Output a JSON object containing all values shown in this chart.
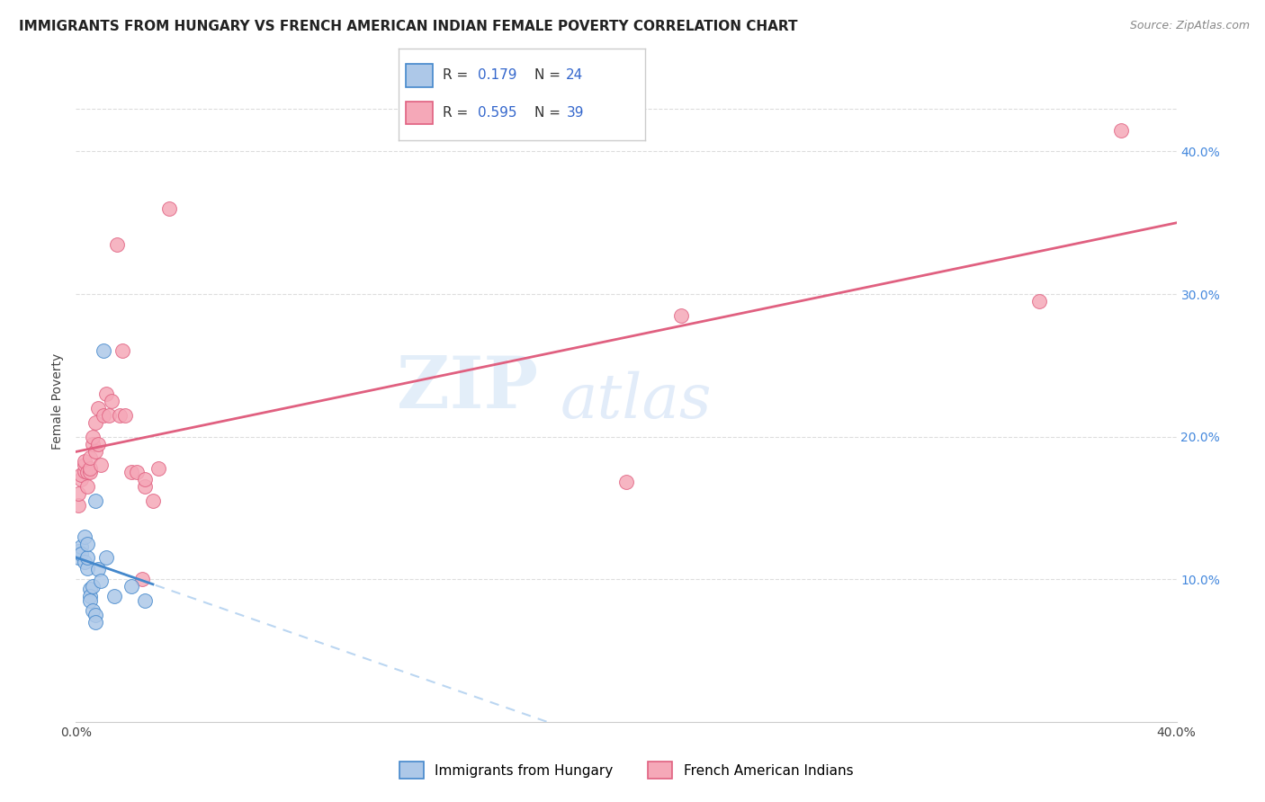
{
  "title": "IMMIGRANTS FROM HUNGARY VS FRENCH AMERICAN INDIAN FEMALE POVERTY CORRELATION CHART",
  "source": "Source: ZipAtlas.com",
  "ylabel": "Female Poverty",
  "xlim": [
    0.0,
    0.4
  ],
  "ylim": [
    0.0,
    0.45
  ],
  "background_color": "#ffffff",
  "watermark_zip": "ZIP",
  "watermark_atlas": "atlas",
  "legend_val1": "0.179",
  "legend_nval1": "24",
  "legend_val2": "0.595",
  "legend_nval2": "39",
  "color_hungary": "#adc8e8",
  "color_french": "#f5a8b8",
  "color_hungary_line": "#4488cc",
  "color_french_line": "#e06080",
  "color_hungary_dashed": "#aaccee",
  "legend_label1": "Immigrants from Hungary",
  "legend_label2": "French American Indians",
  "hungary_x": [
    0.001,
    0.001,
    0.002,
    0.002,
    0.003,
    0.003,
    0.004,
    0.004,
    0.004,
    0.005,
    0.005,
    0.005,
    0.006,
    0.006,
    0.007,
    0.007,
    0.007,
    0.008,
    0.009,
    0.01,
    0.011,
    0.014,
    0.02,
    0.025
  ],
  "hungary_y": [
    0.115,
    0.12,
    0.123,
    0.118,
    0.13,
    0.112,
    0.108,
    0.115,
    0.125,
    0.093,
    0.088,
    0.085,
    0.095,
    0.078,
    0.075,
    0.07,
    0.155,
    0.107,
    0.099,
    0.26,
    0.115,
    0.088,
    0.095,
    0.085
  ],
  "french_x": [
    0.001,
    0.001,
    0.002,
    0.002,
    0.003,
    0.003,
    0.003,
    0.004,
    0.004,
    0.005,
    0.005,
    0.005,
    0.006,
    0.006,
    0.007,
    0.007,
    0.008,
    0.008,
    0.009,
    0.01,
    0.011,
    0.012,
    0.013,
    0.015,
    0.016,
    0.017,
    0.018,
    0.02,
    0.022,
    0.024,
    0.025,
    0.025,
    0.028,
    0.03,
    0.034,
    0.2,
    0.22,
    0.35,
    0.38
  ],
  "french_y": [
    0.152,
    0.16,
    0.17,
    0.173,
    0.176,
    0.18,
    0.183,
    0.165,
    0.175,
    0.175,
    0.178,
    0.185,
    0.195,
    0.2,
    0.19,
    0.21,
    0.22,
    0.195,
    0.18,
    0.215,
    0.23,
    0.215,
    0.225,
    0.335,
    0.215,
    0.26,
    0.215,
    0.175,
    0.175,
    0.1,
    0.165,
    0.17,
    0.155,
    0.178,
    0.36,
    0.168,
    0.285,
    0.295,
    0.415
  ],
  "grid_color": "#dddddd",
  "tick_fontsize": 10,
  "label_fontsize": 10,
  "title_fontsize": 11
}
